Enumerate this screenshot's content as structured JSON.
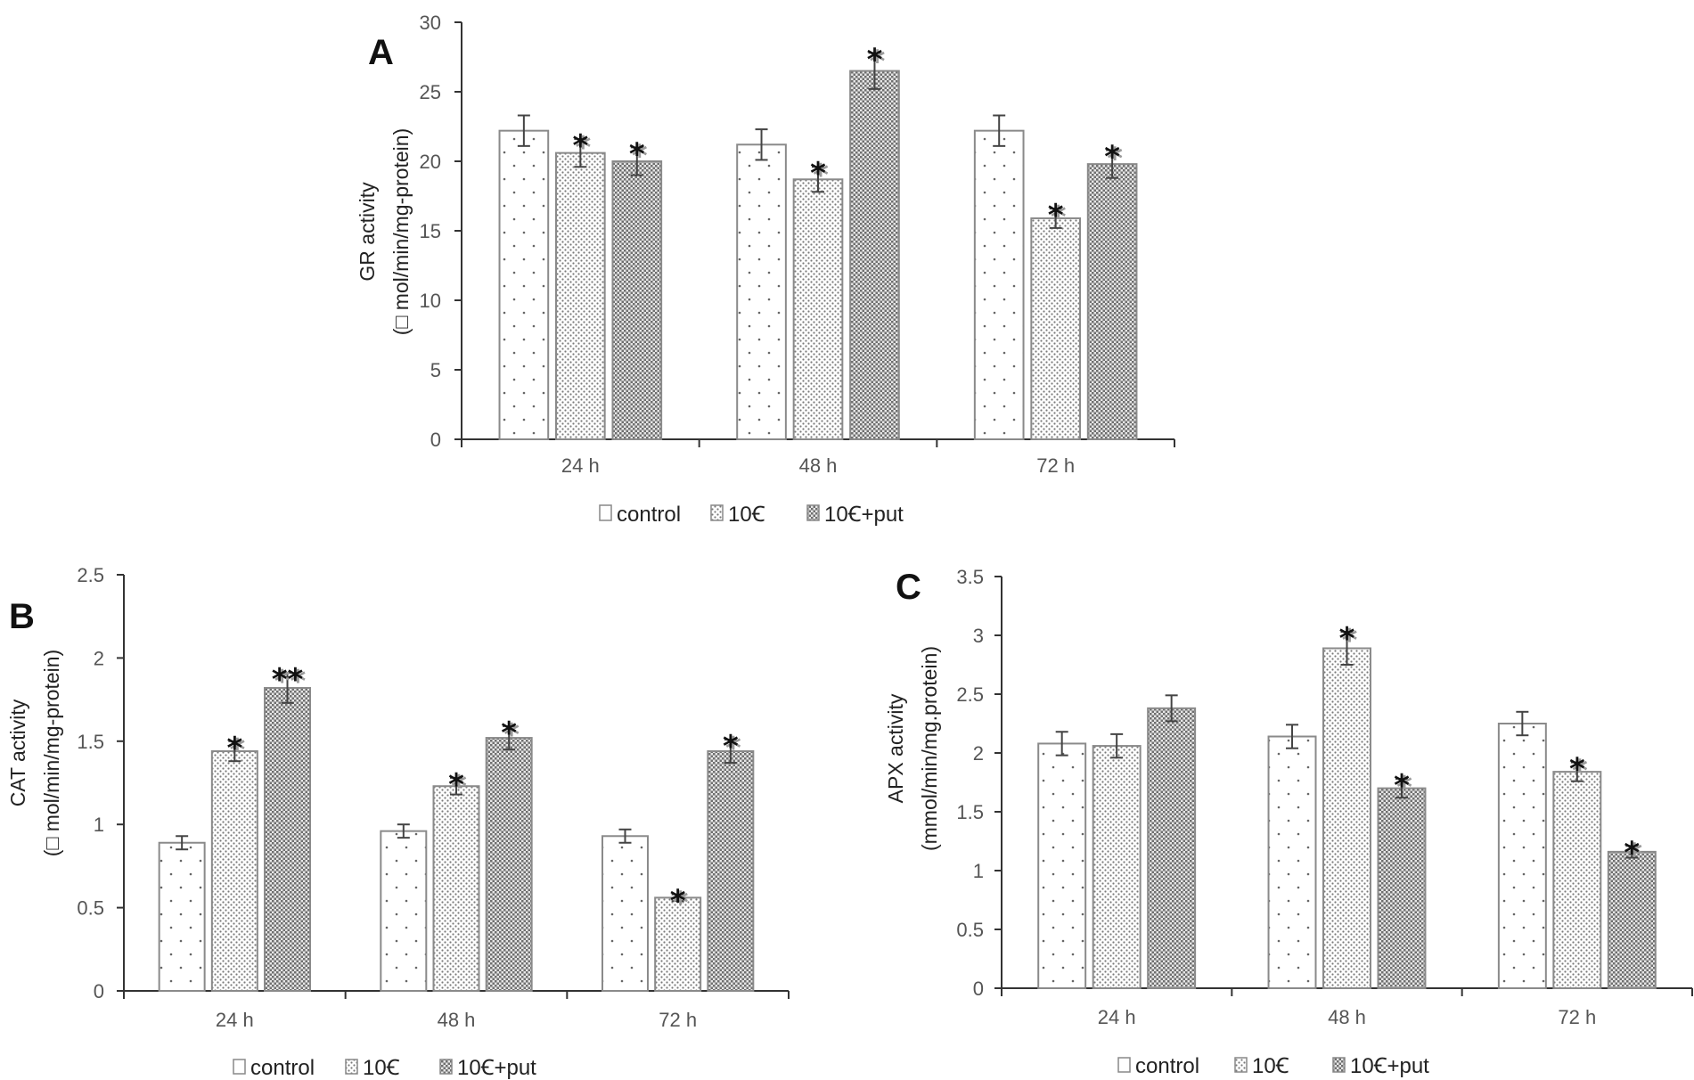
{
  "figure": {
    "legend": {
      "items": [
        {
          "key": "control",
          "label": "control",
          "pattern": "sparse-dots"
        },
        {
          "key": "10C",
          "label": "10Ꞓ",
          "pattern": "dense-dots"
        },
        {
          "key": "10Cput",
          "label": "10Ꞓ+put",
          "pattern": "checker"
        }
      ]
    }
  },
  "chart_data": [
    {
      "id": "A",
      "type": "bar",
      "panel_label": "A",
      "ylabel_line1": "GR activity",
      "ylabel_line2": "(□ mol/min/mg-protein)",
      "categories": [
        "24 h",
        "48 h",
        "72 h"
      ],
      "ylim": [
        0,
        30
      ],
      "yticks": [
        0,
        5,
        10,
        15,
        20,
        25,
        30
      ],
      "tick_labels": [
        "0",
        "5",
        "10",
        "15",
        "20",
        "25",
        "30"
      ],
      "series": [
        {
          "name": "control",
          "values": [
            22.2,
            21.2,
            22.2
          ],
          "errors": [
            1.1,
            1.1,
            1.1
          ],
          "stars": [
            "",
            "",
            ""
          ]
        },
        {
          "name": "10Ꞓ",
          "values": [
            20.6,
            18.7,
            15.9
          ],
          "errors": [
            1.0,
            0.9,
            0.7
          ],
          "stars": [
            "*",
            "*",
            "*"
          ]
        },
        {
          "name": "10Ꞓ+put",
          "values": [
            20.0,
            26.5,
            19.8
          ],
          "errors": [
            1.0,
            1.3,
            1.0
          ],
          "stars": [
            "*",
            "*",
            "*"
          ]
        }
      ]
    },
    {
      "id": "B",
      "type": "bar",
      "panel_label": "B",
      "ylabel_line1": "CAT activity",
      "ylabel_line2": "(□ mol/min/mg-protein)",
      "categories": [
        "24 h",
        "48 h",
        "72 h"
      ],
      "ylim": [
        0,
        2.5
      ],
      "yticks": [
        0,
        0.5,
        1,
        1.5,
        2,
        2.5
      ],
      "tick_labels": [
        "0",
        "0.5",
        "1",
        "1.5",
        "2",
        "2.5"
      ],
      "series": [
        {
          "name": "control",
          "values": [
            0.89,
            0.96,
            0.93
          ],
          "errors": [
            0.04,
            0.04,
            0.04
          ],
          "stars": [
            "",
            "",
            ""
          ]
        },
        {
          "name": "10Ꞓ",
          "values": [
            1.44,
            1.23,
            0.56
          ],
          "errors": [
            0.06,
            0.05,
            0.02
          ],
          "stars": [
            "*",
            "*",
            "*"
          ]
        },
        {
          "name": "10Ꞓ+put",
          "values": [
            1.82,
            1.52,
            1.44
          ],
          "errors": [
            0.09,
            0.07,
            0.07
          ],
          "stars": [
            "**",
            "*",
            "*"
          ]
        }
      ]
    },
    {
      "id": "C",
      "type": "bar",
      "panel_label": "C",
      "ylabel_line1": "APX activity",
      "ylabel_line2": "(mmol/min/mg.protein)",
      "categories": [
        "24 h",
        "48 h",
        "72 h"
      ],
      "ylim": [
        0,
        3.5
      ],
      "yticks": [
        0,
        0.5,
        1,
        1.5,
        2,
        2.5,
        3,
        3.5
      ],
      "tick_labels": [
        "0",
        "0.5",
        "1",
        "1.5",
        "2",
        "2.5",
        "3",
        "3.5"
      ],
      "series": [
        {
          "name": "control",
          "values": [
            2.08,
            2.14,
            2.25
          ],
          "errors": [
            0.1,
            0.1,
            0.1
          ],
          "stars": [
            "",
            "",
            ""
          ]
        },
        {
          "name": "10Ꞓ",
          "values": [
            2.06,
            2.89,
            1.84
          ],
          "errors": [
            0.1,
            0.14,
            0.08
          ],
          "stars": [
            "",
            "*",
            "*"
          ]
        },
        {
          "name": "10Ꞓ+put",
          "values": [
            2.38,
            1.7,
            1.16
          ],
          "errors": [
            0.11,
            0.08,
            0.05
          ],
          "stars": [
            "",
            "*",
            "*"
          ]
        }
      ]
    }
  ]
}
